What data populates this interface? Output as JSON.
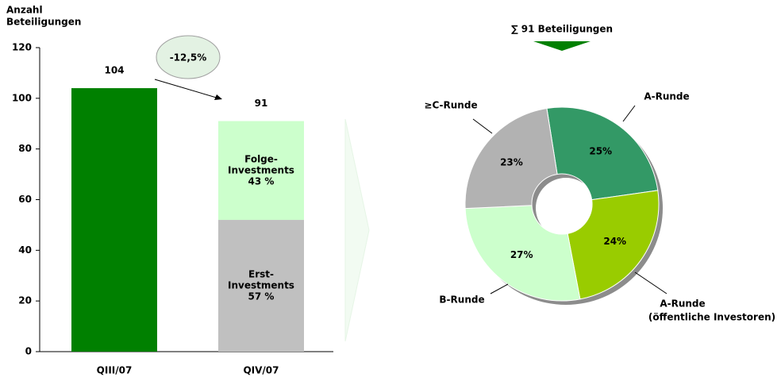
{
  "chart_data": [
    {
      "type": "bar",
      "stacked": true,
      "ylabel_lines": [
        "Anzahl",
        "Beteiligungen"
      ],
      "categories": [
        "QIII/07",
        "QIV/07"
      ],
      "ylim": [
        0,
        120
      ],
      "yticks": [
        0,
        20,
        40,
        60,
        80,
        100,
        120
      ],
      "series": [
        {
          "color": "#008000",
          "values": [
            104,
            null
          ]
        },
        {
          "name_lines": [
            "Erst-",
            "Investments"
          ],
          "share": {
            "value": 57,
            "label": "57 %"
          },
          "color": "#c0c0c0",
          "values": [
            null,
            52
          ]
        },
        {
          "name_lines": [
            "Folge-",
            "Investments"
          ],
          "share": {
            "value": 43,
            "label": "43 %"
          },
          "color": "#ccffcc",
          "values": [
            null,
            39
          ]
        }
      ],
      "totals": [
        104,
        91
      ],
      "annotation": "-12,5%"
    },
    {
      "type": "pie",
      "donut": true,
      "title": "∑ 91 Beteiligungen",
      "categories": [
        "A-Runde",
        "A-Runde",
        "B-Runde",
        "≥C-Runde"
      ],
      "category_notes": [
        null,
        "(öffentliche Investoren)",
        null,
        null
      ],
      "values": [
        25,
        24,
        27,
        23
      ],
      "value_labels": [
        "25%",
        "24%",
        "27%",
        "23%"
      ],
      "colors": [
        "#339966",
        "#99cc00",
        "#ccffcc",
        "#b2b2b2"
      ],
      "label_colors": [
        "#ffffff",
        "#000000",
        "#000000",
        "#000000"
      ]
    }
  ]
}
